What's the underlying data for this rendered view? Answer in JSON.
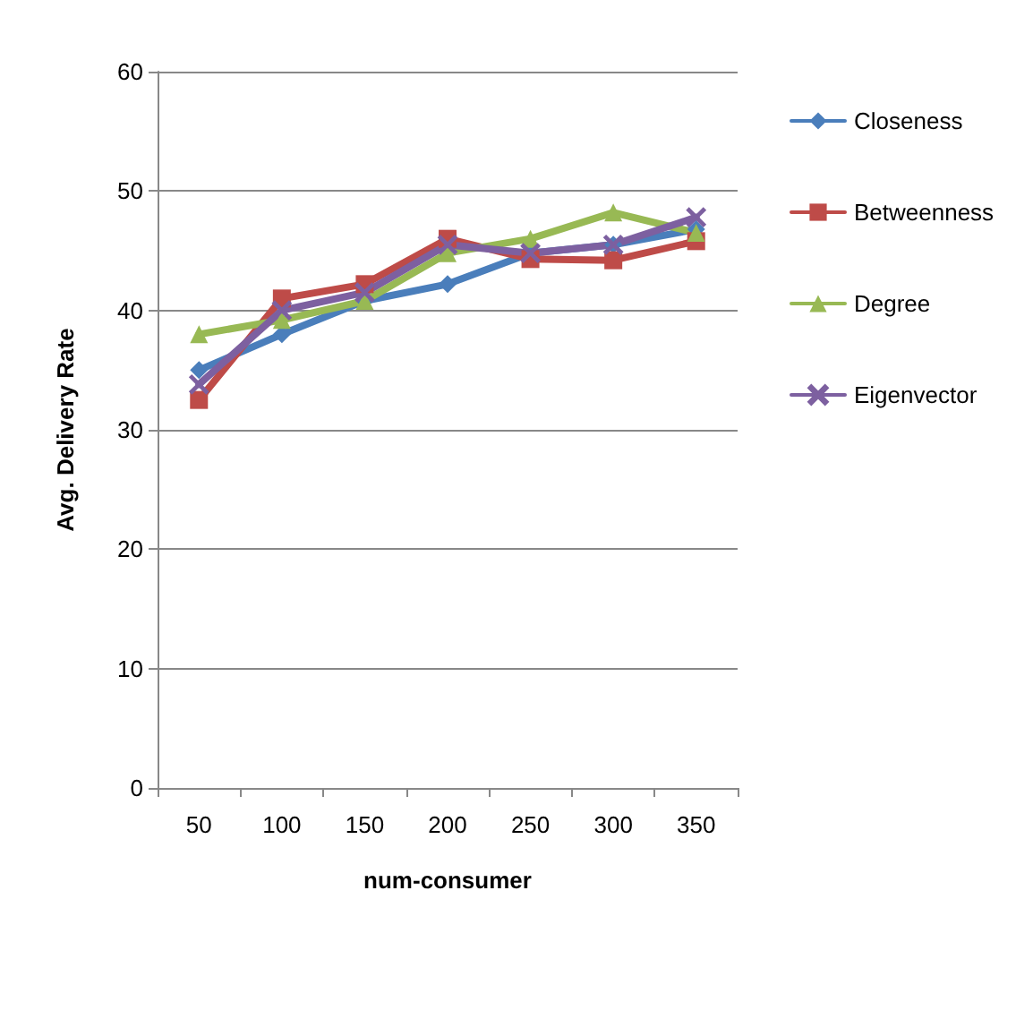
{
  "chart_data": {
    "type": "line",
    "xlabel": "num-consumer",
    "ylabel": "Avg. Delivery Rate",
    "categories": [
      "50",
      "100",
      "150",
      "200",
      "250",
      "300",
      "350"
    ],
    "series": [
      {
        "name": "Closeness",
        "color": "#4a7ebb",
        "marker": "diamond",
        "values": [
          35,
          38,
          40.8,
          42.2,
          44.8,
          45.5,
          46.8
        ]
      },
      {
        "name": "Betweenness",
        "color": "#be4b48",
        "marker": "square",
        "values": [
          32.5,
          41,
          42.2,
          46,
          44.3,
          44.2,
          45.8
        ]
      },
      {
        "name": "Degree",
        "color": "#98b954",
        "marker": "triangle",
        "values": [
          38,
          39.2,
          40.8,
          44.8,
          46,
          48.2,
          46.5
        ]
      },
      {
        "name": "Eigenvector",
        "color": "#7d60a0",
        "marker": "cross",
        "values": [
          33.8,
          40,
          41.5,
          45.5,
          44.8,
          45.5,
          47.8
        ]
      }
    ],
    "ylim": [
      0,
      60
    ],
    "yticks": [
      0,
      10,
      20,
      30,
      40,
      50,
      60
    ],
    "grid": "y",
    "legend": "right"
  }
}
